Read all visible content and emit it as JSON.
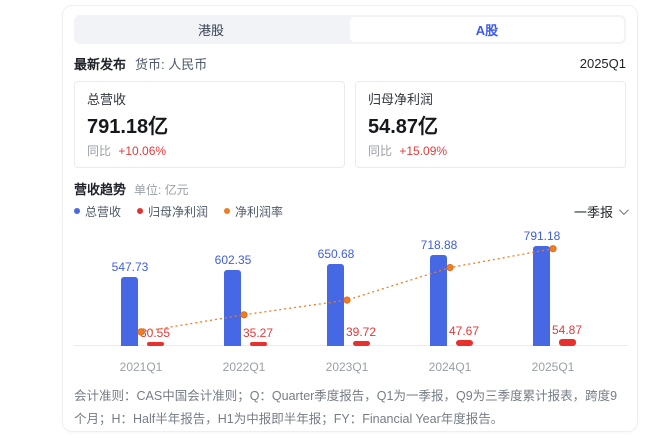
{
  "tabs": {
    "hk_label": "港股",
    "a_label": "A股",
    "active": "A股"
  },
  "header": {
    "latest_label": "最新发布",
    "currency_label": "货币: 人民币",
    "period": "2025Q1"
  },
  "metrics": [
    {
      "title": "总营收",
      "value": "791.18亿",
      "yoy_label": "同比",
      "yoy_change": "+10.06%"
    },
    {
      "title": "归母净利润",
      "value": "54.87亿",
      "yoy_label": "同比",
      "yoy_change": "+15.09%"
    }
  ],
  "trend_section": {
    "title": "营收趋势",
    "unit_label": "单位: 亿元",
    "legend": [
      {
        "label": "总营收",
        "color": "#4668e5"
      },
      {
        "label": "归母净利润",
        "color": "#e8312f"
      },
      {
        "label": "净利润率",
        "color": "#f07c24"
      }
    ],
    "period_selector": "一季报"
  },
  "chart_data": {
    "type": "bar",
    "title": "营收趋势",
    "unit": "亿元",
    "categories": [
      "2021Q1",
      "2022Q1",
      "2023Q1",
      "2024Q1",
      "2025Q1"
    ],
    "series": [
      {
        "name": "总营收",
        "type": "bar",
        "color": "#4668e5",
        "values": [
          547.73,
          602.35,
          650.68,
          718.88,
          791.18
        ]
      },
      {
        "name": "归母净利润",
        "type": "bar",
        "color": "#e8312f",
        "values": [
          30.55,
          35.27,
          39.72,
          47.67,
          54.87
        ]
      },
      {
        "name": "净利润率",
        "type": "line",
        "style": "dotted",
        "color": "#f07c24",
        "unit": "%",
        "values": [
          5.58,
          5.86,
          6.1,
          6.63,
          6.94
        ]
      }
    ],
    "grid": false,
    "legend_position": "top-left",
    "value_labels": true
  },
  "footer": {
    "note": "会计准则：CAS中国会计准则；Q：Quarter季度报告，Q1为一季报，Q9为三季度累计报表，跨度9个月；H：Half半年报告，H1为中报即半年报；FY：Financial Year年度报告。"
  },
  "colors": {
    "accent_blue": "#3d5af0",
    "bar_blue": "#4668e5",
    "bar_red": "#e8312f",
    "line_orange": "#f07c24",
    "negative_red": "#e23a39"
  }
}
